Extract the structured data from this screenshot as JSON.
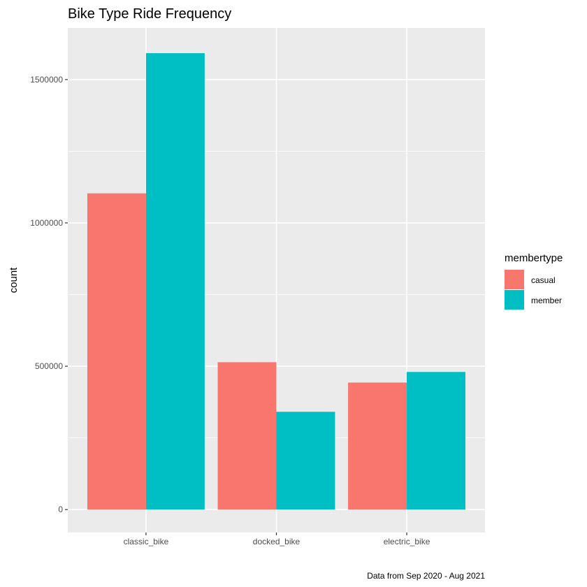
{
  "chart_data": {
    "type": "bar",
    "title": "Bike Type Ride Frequency",
    "xlabel": "",
    "ylabel": "count",
    "caption": "Data from Sep 2020 - Aug 2021",
    "categories": [
      "classic_bike",
      "docked_bike",
      "electric_bike"
    ],
    "series": [
      {
        "name": "casual",
        "color": "#F8766D",
        "values": [
          1103000,
          514000,
          443000
        ]
      },
      {
        "name": "member",
        "color": "#00BFC4",
        "values": [
          1592000,
          341000,
          480000
        ]
      }
    ],
    "ylim": [
      -80000,
      1680000
    ],
    "yticks": [
      0,
      500000,
      1000000,
      1500000
    ],
    "ytick_labels": [
      "0",
      "500000",
      "1000000",
      "1500000"
    ],
    "grid": true,
    "legend": {
      "title": "membertype",
      "position": "right"
    },
    "colors": {
      "panel": "#EBEBEB",
      "grid": "#FFFFFF",
      "tick": "#333333"
    }
  }
}
